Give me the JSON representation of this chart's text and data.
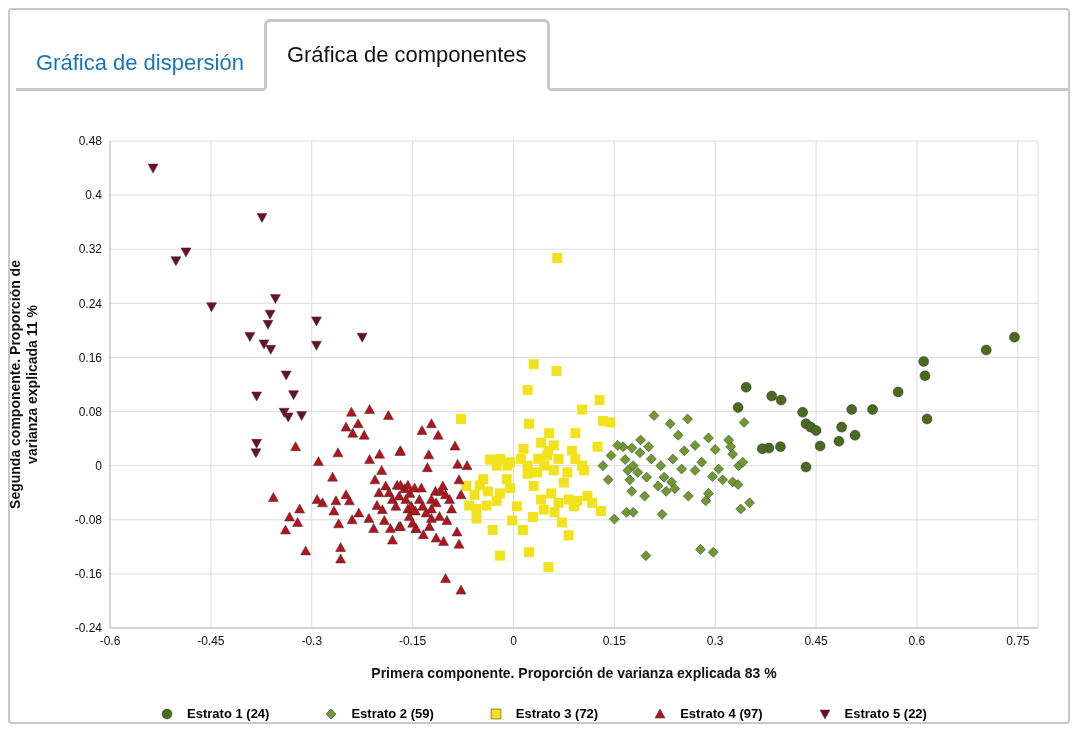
{
  "chart_data": {
    "type": "scatter",
    "xlabel": "Primera componente. Proporción de varianza explicada 83 %",
    "ylabel": "Segunda componente. Proporción de varianza explicada 11 %",
    "annotations": [
      "Gráfica de dispersión",
      "Gráfica de componentes"
    ],
    "xlim": [
      -0.6,
      0.78
    ],
    "ylim": [
      -0.24,
      0.48
    ],
    "xticks": [
      -0.6,
      -0.45,
      -0.3,
      -0.15,
      0,
      0.15,
      0.3,
      0.45,
      0.6,
      0.75
    ],
    "yticks": [
      -0.24,
      -0.16,
      -0.08,
      0,
      0.08,
      0.16,
      0.24,
      0.32,
      0.4,
      0.48
    ],
    "grid": true,
    "legend": "bottom",
    "series": [
      {
        "name": "Estrato 1 (24)",
        "color": "#4a6b1e",
        "marker": "circle",
        "x": [
          0.346,
          0.334,
          0.384,
          0.398,
          0.38,
          0.397,
          0.37,
          0.43,
          0.435,
          0.442,
          0.45,
          0.456,
          0.435,
          0.488,
          0.484,
          0.508,
          0.503,
          0.534,
          0.572,
          0.61,
          0.612,
          0.615,
          0.703,
          0.745
        ],
        "values": [
          0.116,
          0.086,
          0.103,
          0.097,
          0.026,
          0.028,
          0.025,
          0.079,
          0.062,
          0.057,
          0.052,
          0.029,
          -0.002,
          0.057,
          0.036,
          0.045,
          0.083,
          0.083,
          0.109,
          0.154,
          0.133,
          0.069,
          0.171,
          0.19
        ]
      },
      {
        "name": "Estrato 2 (59)",
        "color": "#6f9a2f",
        "marker": "diamond",
        "x": [
          0.209,
          0.233,
          0.259,
          0.29,
          0.32,
          0.323,
          0.326,
          0.335,
          0.341,
          0.3,
          0.254,
          0.28,
          0.27,
          0.296,
          0.311,
          0.326,
          0.334,
          0.29,
          0.286,
          0.351,
          0.338,
          0.278,
          0.297,
          0.197,
          0.163,
          0.176,
          0.189,
          0.201,
          0.188,
          0.133,
          0.141,
          0.166,
          0.17,
          0.178,
          0.173,
          0.176,
          0.198,
          0.219,
          0.237,
          0.224,
          0.235,
          0.227,
          0.24,
          0.221,
          0.168,
          0.178,
          0.15,
          0.343,
          0.145,
          0.155,
          0.185,
          0.195,
          0.205,
          0.215,
          0.25,
          0.26,
          0.27,
          0.305,
          0.245
        ],
        "values": [
          0.074,
          0.062,
          0.069,
          0.041,
          0.038,
          0.028,
          0.017,
          0.0,
          0.005,
          0.024,
          0.022,
          0.005,
          -0.007,
          -0.016,
          -0.021,
          -0.024,
          -0.028,
          -0.041,
          -0.052,
          -0.055,
          -0.064,
          -0.124,
          -0.128,
          -0.133,
          0.028,
          0.026,
          0.038,
          0.028,
          0.019,
          0.0,
          -0.021,
          0.009,
          -0.007,
          0.0,
          -0.021,
          -0.038,
          -0.017,
          0.0,
          0.01,
          -0.017,
          -0.024,
          -0.038,
          -0.034,
          -0.072,
          -0.069,
          -0.069,
          -0.079,
          0.064,
          0.015,
          0.03,
          -0.01,
          -0.045,
          0.01,
          -0.03,
          -0.005,
          -0.045,
          0.03,
          -0.005,
          0.045
        ]
      },
      {
        "name": "Estrato 3 (72)",
        "color": "#f2e21c",
        "marker": "square",
        "x": [
          0.03,
          0.064,
          0.021,
          -0.078,
          0.128,
          0.102,
          0.133,
          0.144,
          0.023,
          0.092,
          0.053,
          0.125,
          0.041,
          0.052,
          0.087,
          -0.02,
          0.011,
          0.037,
          0.067,
          -0.025,
          -0.009,
          0.021,
          0.046,
          0.102,
          0.021,
          0.06,
          0.092,
          0.105,
          -0.05,
          -0.038,
          -0.02,
          -0.005,
          -0.058,
          -0.066,
          -0.055,
          -0.04,
          -0.025,
          -0.055,
          -0.031,
          -0.002,
          0.014,
          0.029,
          0.041,
          0.056,
          0.067,
          0.082,
          0.095,
          0.061,
          0.072,
          0.082,
          -0.02,
          0.023,
          0.052,
          0.117,
          0.13,
          0.065,
          -0.035,
          -0.005,
          -0.045,
          -0.01,
          0.005,
          0.03,
          0.045,
          0.05,
          0.035,
          0.075,
          0.09,
          0.11,
          -0.07,
          0.015,
          0.06,
          0.08
        ],
        "values": [
          0.15,
          0.14,
          0.112,
          0.069,
          0.097,
          0.083,
          0.066,
          0.064,
          0.062,
          0.048,
          0.048,
          0.028,
          0.034,
          0.022,
          0.022,
          0.01,
          0.01,
          0.01,
          0.01,
          0.0,
          0.0,
          0.0,
          0.0,
          0.0,
          -0.012,
          -0.007,
          0.01,
          -0.007,
          -0.029,
          -0.038,
          -0.041,
          -0.033,
          -0.043,
          -0.059,
          -0.064,
          -0.059,
          -0.052,
          -0.078,
          -0.095,
          -0.081,
          -0.095,
          -0.076,
          -0.05,
          -0.041,
          -0.055,
          -0.05,
          -0.052,
          -0.069,
          -0.084,
          -0.103,
          -0.133,
          -0.128,
          -0.15,
          -0.055,
          -0.067,
          0.307,
          0.009,
          0.005,
          -0.02,
          -0.02,
          -0.06,
          -0.03,
          -0.065,
          0.015,
          -0.01,
          -0.025,
          -0.06,
          -0.045,
          -0.03,
          0.025,
          0.03,
          -0.01
        ]
      },
      {
        "name": "Estrato 4 (97)",
        "color": "#b5121b",
        "marker": "triangle",
        "x": [
          -0.241,
          -0.214,
          -0.186,
          -0.249,
          -0.231,
          -0.222,
          -0.239,
          -0.324,
          -0.29,
          -0.261,
          -0.214,
          -0.199,
          -0.168,
          -0.196,
          -0.269,
          -0.206,
          -0.357,
          -0.292,
          -0.284,
          -0.264,
          -0.249,
          -0.244,
          -0.267,
          -0.318,
          -0.333,
          -0.321,
          -0.339,
          -0.26,
          -0.309,
          -0.257,
          -0.257,
          -0.203,
          -0.215,
          -0.208,
          -0.192,
          -0.183,
          -0.18,
          -0.17,
          -0.173,
          -0.162,
          -0.154,
          -0.152,
          -0.145,
          -0.122,
          -0.136,
          -0.112,
          -0.087,
          -0.169,
          -0.126,
          -0.128,
          -0.083,
          -0.069,
          -0.081,
          -0.078,
          -0.168,
          -0.157,
          -0.147,
          -0.137,
          -0.116,
          -0.108,
          -0.101,
          -0.122,
          -0.157,
          -0.146,
          -0.122,
          -0.092,
          -0.122,
          -0.099,
          -0.168,
          -0.145,
          -0.134,
          -0.115,
          -0.104,
          -0.084,
          -0.081,
          -0.101,
          -0.078,
          -0.19,
          -0.185,
          -0.18,
          -0.175,
          -0.17,
          -0.16,
          -0.155,
          -0.15,
          -0.14,
          -0.135,
          -0.13,
          -0.125,
          -0.115,
          -0.11,
          -0.105,
          -0.095,
          -0.2,
          -0.195,
          -0.23,
          -0.24
        ],
        "values": [
          0.079,
          0.083,
          0.074,
          0.057,
          0.062,
          0.045,
          0.048,
          0.028,
          0.006,
          0.019,
          0.009,
          0.017,
          0.022,
          -0.007,
          -0.017,
          -0.021,
          -0.047,
          -0.05,
          -0.055,
          -0.052,
          -0.043,
          -0.052,
          -0.067,
          -0.064,
          -0.076,
          -0.084,
          -0.095,
          -0.086,
          -0.126,
          -0.121,
          -0.138,
          -0.059,
          -0.078,
          -0.093,
          -0.081,
          -0.093,
          -0.11,
          -0.09,
          -0.029,
          -0.034,
          -0.041,
          -0.06,
          -0.093,
          0.062,
          0.052,
          0.045,
          0.029,
          0.021,
          0.016,
          -0.003,
          0.002,
          0.0,
          -0.021,
          -0.043,
          -0.029,
          -0.029,
          -0.033,
          -0.033,
          -0.038,
          -0.038,
          -0.043,
          -0.05,
          -0.064,
          -0.067,
          -0.064,
          -0.064,
          -0.078,
          -0.081,
          -0.09,
          -0.093,
          -0.102,
          -0.107,
          -0.112,
          -0.098,
          -0.116,
          -0.167,
          -0.184,
          -0.03,
          -0.04,
          -0.05,
          -0.06,
          -0.045,
          -0.05,
          -0.075,
          -0.085,
          -0.05,
          -0.06,
          -0.07,
          -0.09,
          -0.055,
          -0.075,
          -0.03,
          -0.05,
          -0.04,
          -0.065,
          -0.07,
          -0.08
        ]
      },
      {
        "name": "Estrato 5 (22)",
        "color": "#6b0f24",
        "marker": "triangle-down",
        "x": [
          -0.536,
          -0.374,
          -0.502,
          -0.487,
          -0.449,
          -0.354,
          -0.362,
          -0.365,
          -0.392,
          -0.371,
          -0.361,
          -0.293,
          -0.293,
          -0.225,
          -0.338,
          -0.327,
          -0.382,
          -0.341,
          -0.335,
          -0.315,
          -0.382,
          -0.383
        ],
        "values": [
          0.44,
          0.367,
          0.303,
          0.316,
          0.235,
          0.247,
          0.224,
          0.209,
          0.191,
          0.18,
          0.172,
          0.214,
          0.178,
          0.19,
          0.134,
          0.105,
          0.103,
          0.079,
          0.072,
          0.074,
          0.033,
          0.019
        ]
      }
    ]
  }
}
